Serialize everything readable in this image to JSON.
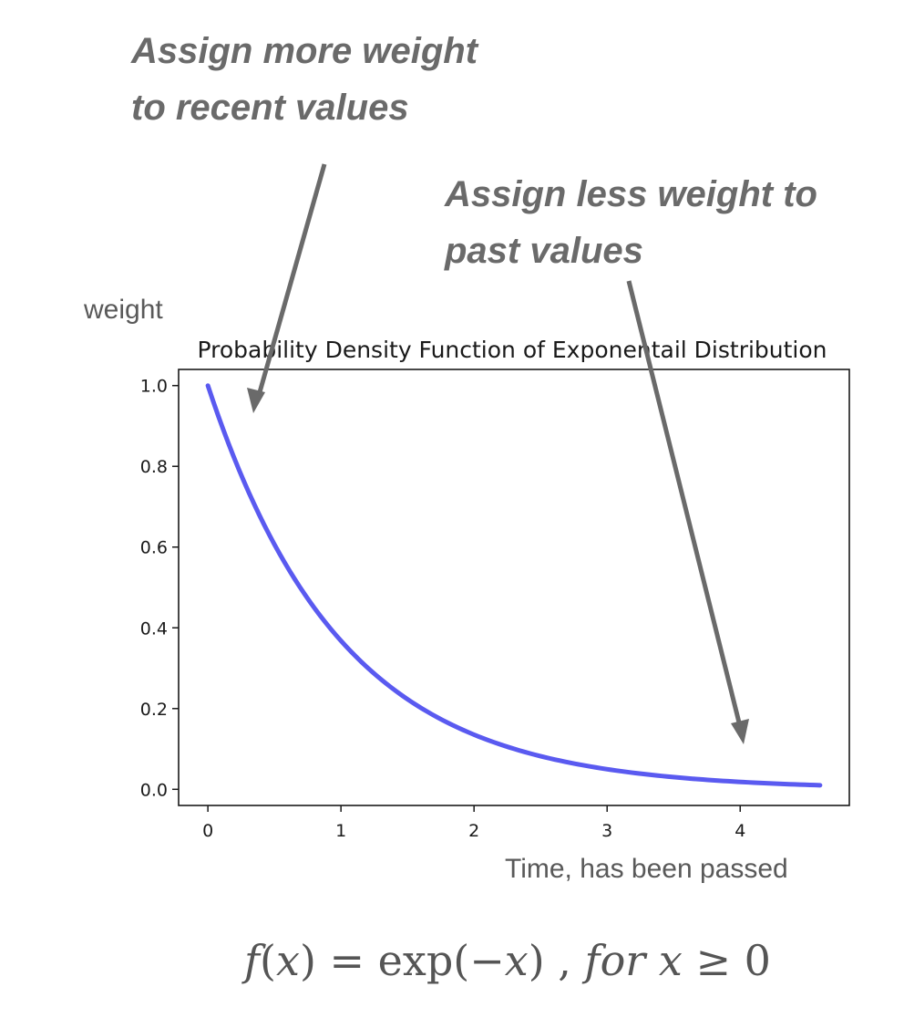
{
  "annotations": {
    "recent": {
      "line1": "Assign more weight",
      "line2": "to recent values"
    },
    "past": {
      "line1": "Assign less weight to",
      "line2": "past values"
    }
  },
  "labels": {
    "weight": "weight",
    "time": "Time, has been passed"
  },
  "formula": {
    "f": "f",
    "lparen": "(",
    "x": "x",
    "rparen": ")",
    "eq": " = exp(−",
    "x2": "x",
    "close": ") , ",
    "for": "for",
    "x3": " x",
    "cond": " ≥ 0"
  },
  "colors": {
    "curve": "#5a5af0",
    "arrow": "#6a6a6a",
    "axes": "#1a1a1a"
  },
  "chart_data": {
    "type": "line",
    "title": "Probability Density Function of Exponentail Distribution",
    "xlabel": "Time, has been passed",
    "ylabel": "weight",
    "function": "exp(-x)",
    "x_range": [
      0,
      4.6
    ],
    "xlim": [
      -0.22,
      4.82
    ],
    "ylim": [
      -0.04,
      1.04
    ],
    "xticks": [
      0,
      1,
      2,
      3,
      4
    ],
    "yticks": [
      0.0,
      0.2,
      0.4,
      0.6,
      0.8,
      1.0
    ],
    "ytick_labels": [
      "0.0",
      "0.2",
      "0.4",
      "0.6",
      "0.8",
      "1.0"
    ],
    "xtick_labels": [
      "0",
      "1",
      "2",
      "3",
      "4"
    ],
    "series": [
      {
        "name": "exp(-x)",
        "x": [
          0,
          0.25,
          0.5,
          0.75,
          1.0,
          1.5,
          2.0,
          2.5,
          3.0,
          3.5,
          4.0,
          4.6
        ],
        "values": [
          1.0,
          0.779,
          0.607,
          0.472,
          0.368,
          0.223,
          0.135,
          0.082,
          0.05,
          0.03,
          0.018,
          0.01
        ]
      }
    ],
    "annotations": [
      "Assign more weight to recent values",
      "Assign less weight to past values"
    ]
  }
}
